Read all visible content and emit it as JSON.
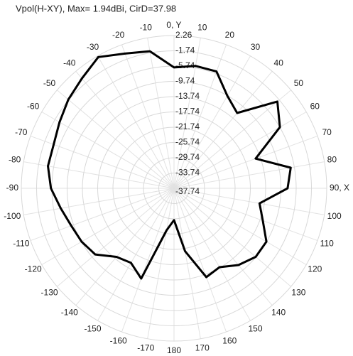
{
  "chart_data": {
    "type": "polar",
    "title": "Vpol(H-XY), Max= 1.94dBi, CirD=37.98",
    "rlim": [
      -37.74,
      2.26
    ],
    "rticks": [
      2.26,
      -1.74,
      -5.74,
      -9.74,
      -13.74,
      -17.74,
      -21.74,
      -25.74,
      -29.74,
      -33.74,
      -37.74
    ],
    "thetaticks": [
      {
        "value": 0,
        "label": "0, Y"
      },
      10,
      20,
      30,
      40,
      50,
      60,
      70,
      80,
      {
        "value": 90,
        "label": "90, X"
      },
      100,
      110,
      120,
      130,
      140,
      150,
      160,
      170,
      180,
      -170,
      -160,
      -150,
      -140,
      -130,
      -120,
      -110,
      -100,
      -90,
      -80,
      -70,
      -60,
      -50,
      -40,
      -30,
      -20,
      -10
    ],
    "direction": "clockwise",
    "zero": "top",
    "grid": true,
    "series": [
      {
        "color": "#000000",
        "theta": [
          -170,
          -160,
          -150,
          -140,
          -130,
          -120,
          -110,
          -100,
          -90,
          -80,
          -70,
          -60,
          -50,
          -40,
          -30,
          -20,
          -10,
          0,
          10,
          20,
          30,
          40,
          50,
          60,
          70,
          80,
          90,
          100,
          110,
          120,
          130,
          140,
          150,
          160,
          170,
          180
        ],
        "values": [
          -26.6,
          -12.6,
          -15.2,
          -14.3,
          -10.8,
          -9.8,
          -9.1,
          -7.6,
          -5.5,
          -4.2,
          -4.2,
          -3.1,
          -1.6,
          -0.2,
          1.94,
          -0.2,
          -1.3,
          -6.1,
          -5.2,
          -5.2,
          -9.8,
          -12.0,
          -2.4,
          -5.7,
          -15.0,
          -6.7,
          -8.0,
          -15.0,
          -13.0,
          -9.8,
          -9.8,
          -11.5,
          -13.9,
          -13.0,
          -21.0,
          -29.4
        ]
      }
    ]
  }
}
